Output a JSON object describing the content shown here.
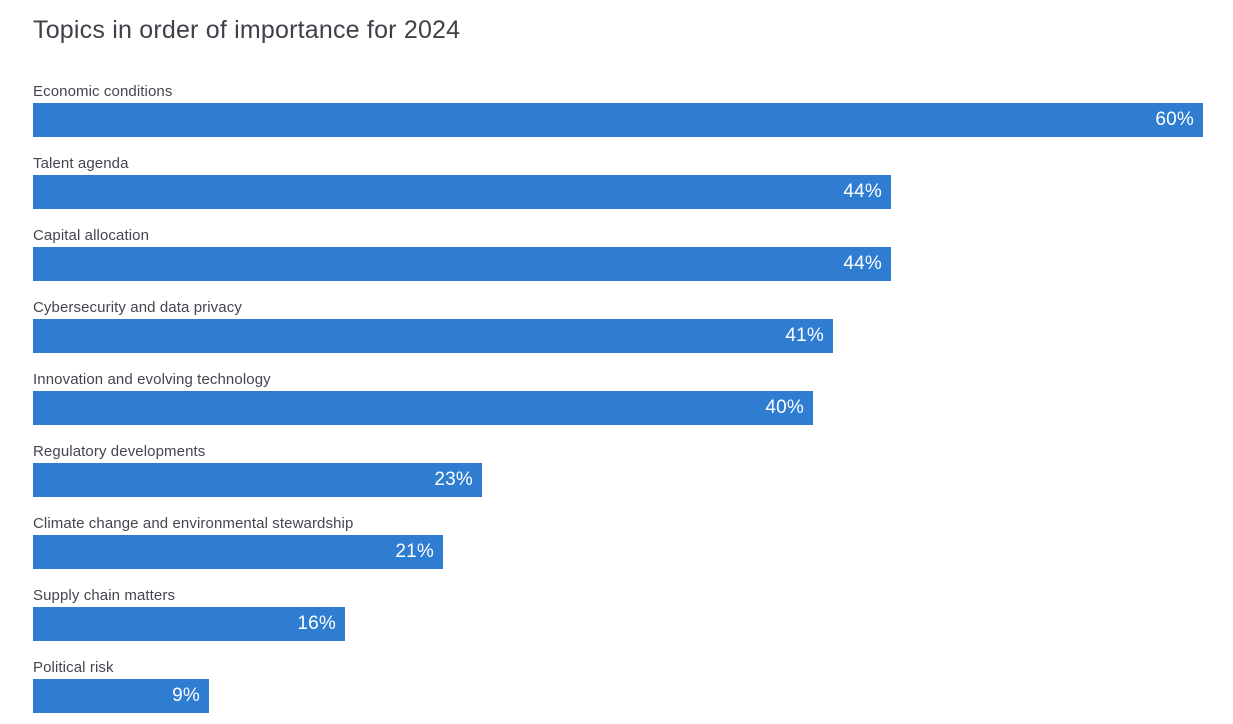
{
  "title": "Topics in order of importance for 2024",
  "chart_data": {
    "type": "bar",
    "orientation": "horizontal",
    "title": "Topics in order of importance for 2024",
    "categories": [
      "Economic conditions",
      "Talent agenda",
      "Capital allocation",
      "Cybersecurity and data privacy",
      "Innovation and evolving technology",
      "Regulatory developments",
      "Climate change and environmental stewardship",
      "Supply chain matters",
      "Political risk"
    ],
    "values": [
      60,
      44,
      44,
      41,
      40,
      23,
      21,
      16,
      9
    ],
    "value_labels": [
      "60%",
      "44%",
      "44%",
      "41%",
      "40%",
      "23%",
      "21%",
      "16%",
      "9%"
    ],
    "value_suffix": "%",
    "xlim": [
      0,
      60
    ],
    "grid": false,
    "legend": false,
    "bar_color": "#2E7DD1",
    "value_label_color": "#FFFFFF",
    "category_label_color": "#45454E",
    "title_color": "#404049"
  }
}
